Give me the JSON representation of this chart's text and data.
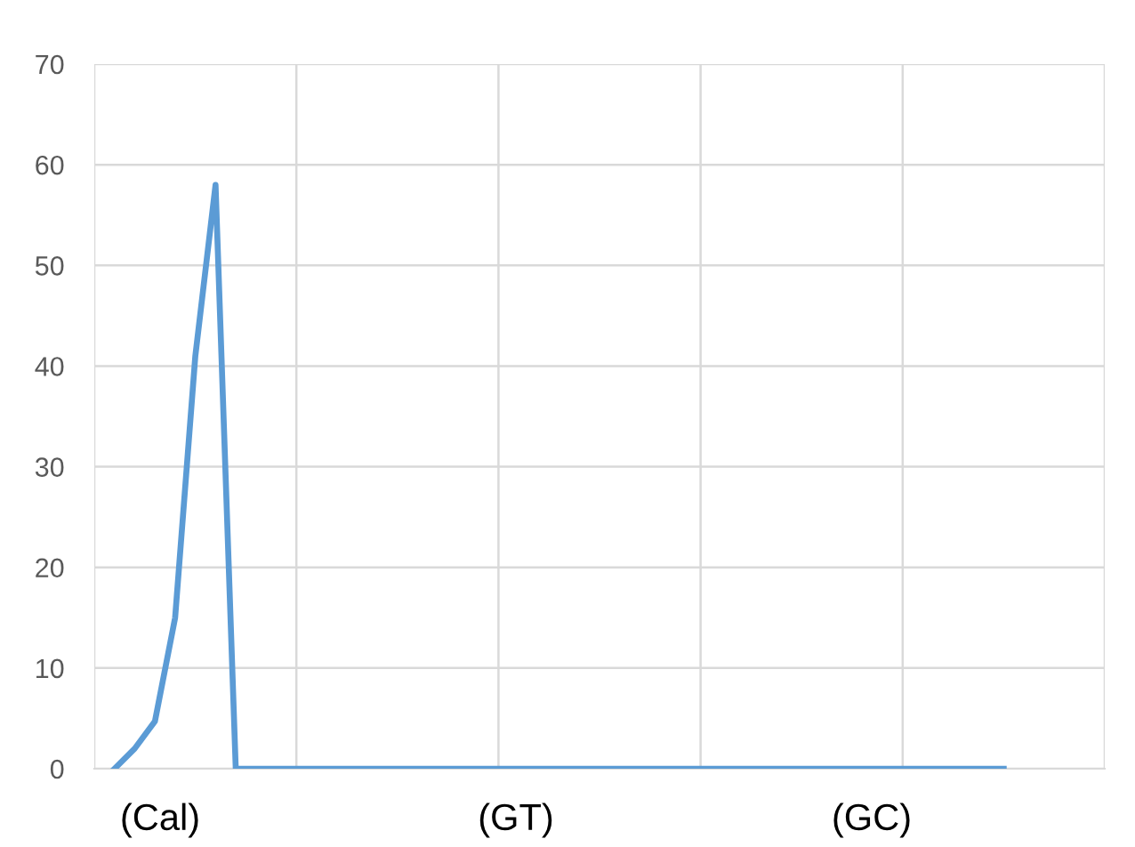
{
  "chart_data": {
    "type": "line",
    "categories": [
      null,
      null,
      null,
      null,
      null,
      null,
      null,
      null,
      null,
      null,
      null,
      null,
      null,
      null,
      null,
      null,
      null,
      null,
      null,
      null,
      null,
      null,
      null,
      null,
      null,
      null,
      null,
      null,
      null,
      null,
      null,
      null,
      null,
      null,
      null,
      null,
      null,
      null,
      null,
      null,
      null,
      null,
      null,
      null,
      null
    ],
    "series": [
      {
        "color": "#5b9bd5",
        "values": [
          0,
          2,
          4.7,
          15,
          41,
          58,
          0,
          0,
          0,
          0,
          0,
          0,
          0,
          0,
          0,
          0,
          0,
          0,
          0,
          0,
          0,
          0,
          0,
          0,
          0,
          0,
          0,
          0,
          0,
          0,
          0,
          0,
          0,
          0,
          0,
          0,
          0,
          0,
          0,
          0,
          0,
          0,
          0,
          0,
          0
        ]
      }
    ],
    "ylim": [
      0,
      70
    ],
    "yticks": [
      0,
      10,
      20,
      30,
      40,
      50,
      60,
      70
    ],
    "grid": true,
    "marker": "none",
    "line_style": "solid",
    "annotations": [
      "(Cal)",
      "(GT)",
      "(GC)"
    ]
  }
}
